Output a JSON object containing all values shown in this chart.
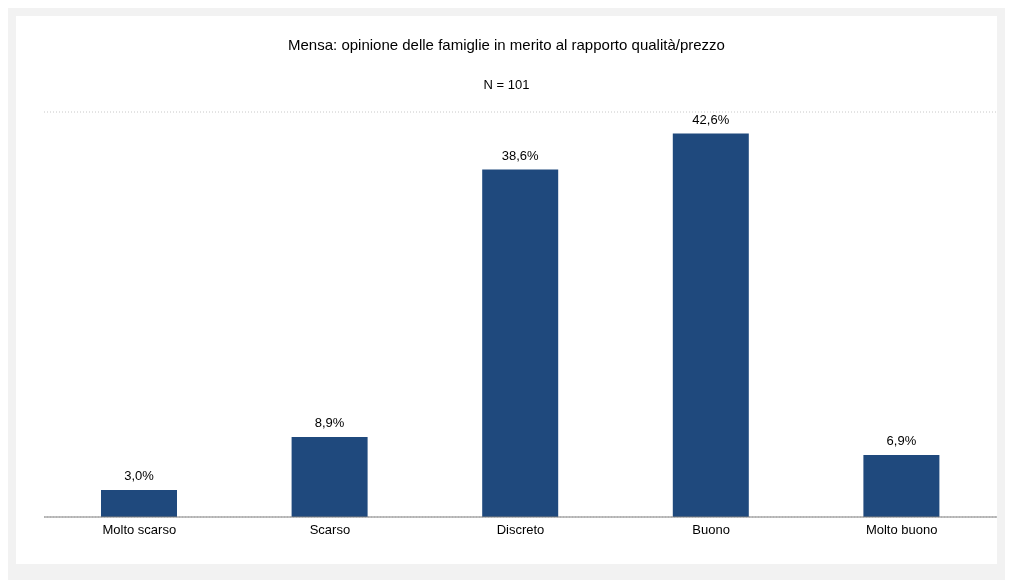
{
  "chart_data": {
    "type": "bar",
    "title": "Mensa: opinione delle famiglie in merito al rapporto qualità/prezzo",
    "subtitle": "N = 101",
    "categories": [
      "Molto scarso",
      "Scarso",
      "Discreto",
      "Buono",
      "Molto buono"
    ],
    "values": [
      3.0,
      8.9,
      38.6,
      42.6,
      6.9
    ],
    "value_labels": [
      "3,0%",
      "8,9%",
      "38,6%",
      "42,6%",
      "6,9%"
    ],
    "color": "#1f497d",
    "ylim": [
      0,
      45
    ],
    "grid": "y",
    "tick_labels": "x",
    "legend": false
  }
}
